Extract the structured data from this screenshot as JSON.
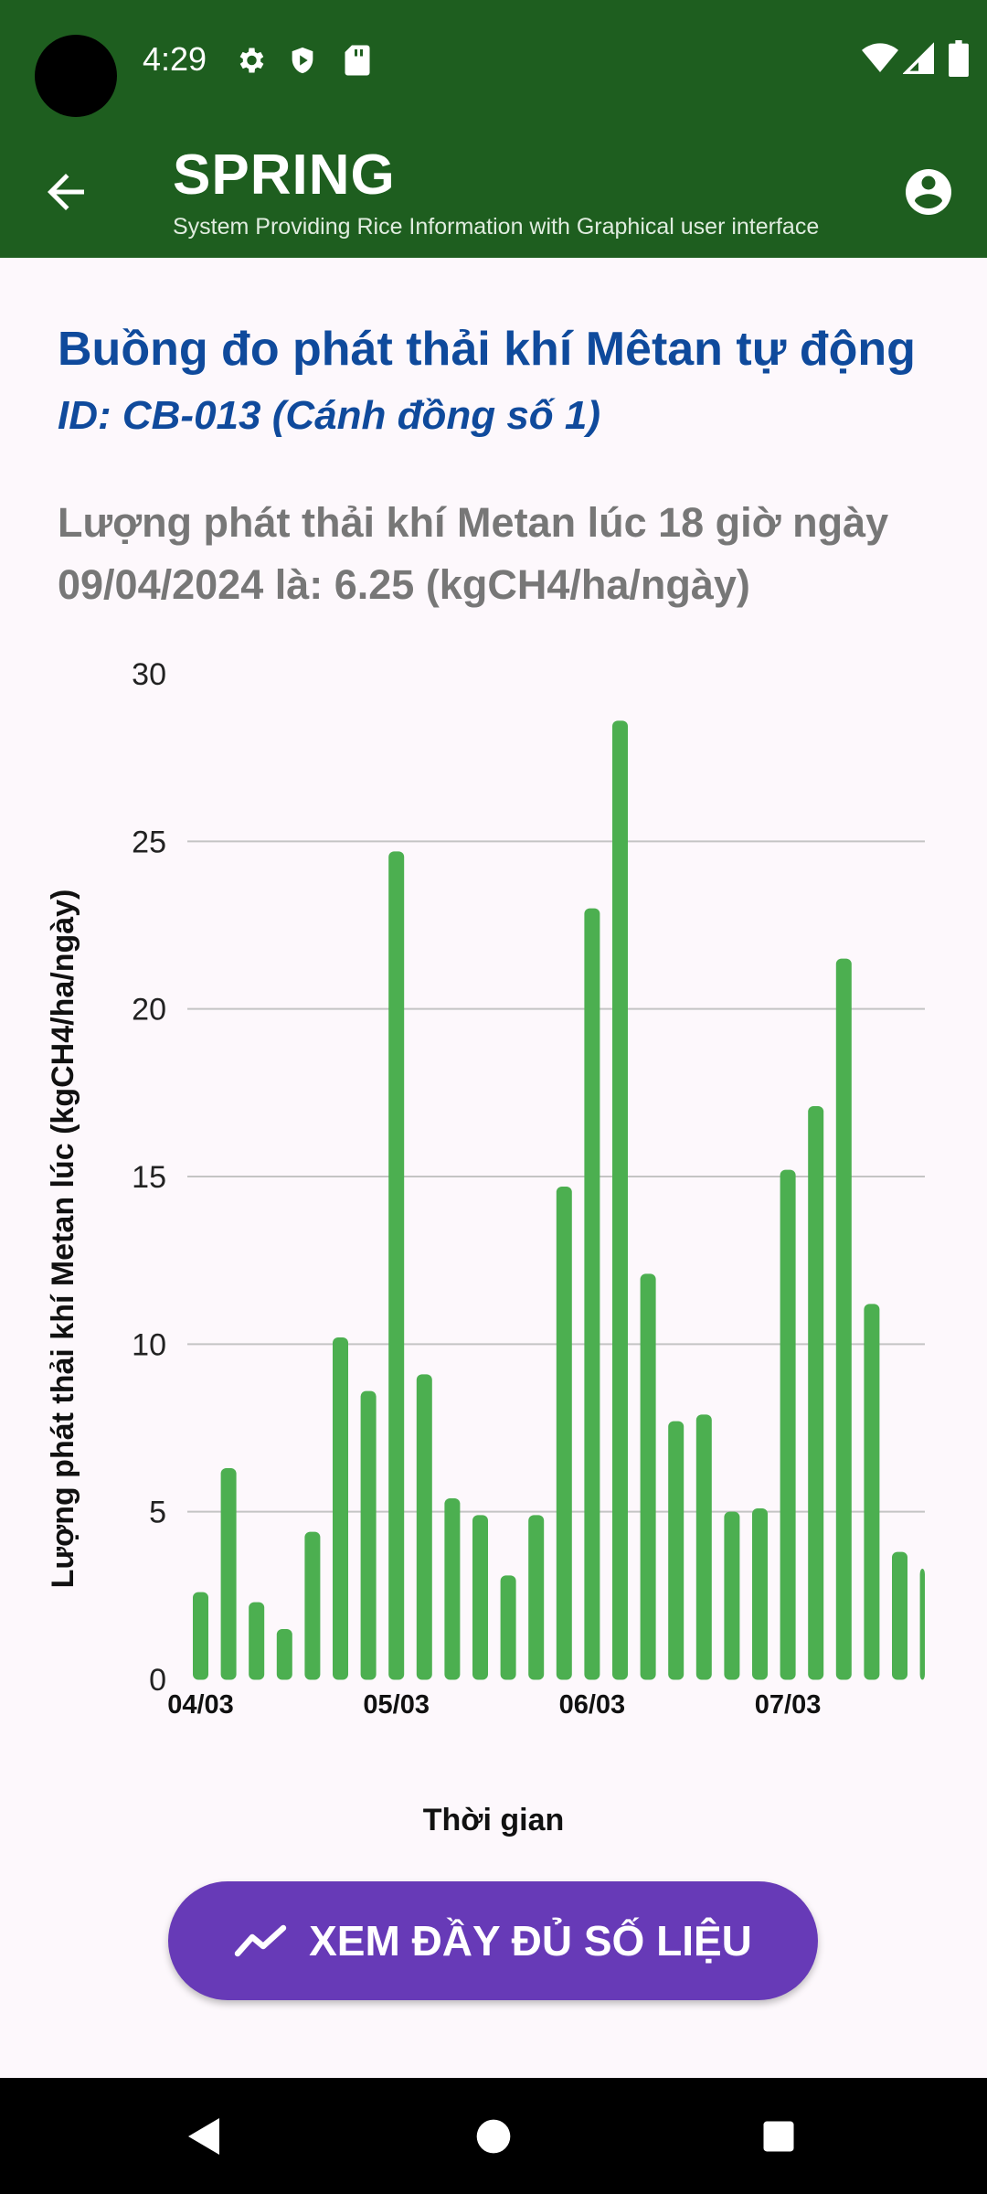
{
  "status_bar": {
    "time": "4:29",
    "icons": [
      "gear-icon",
      "shield-icon",
      "sd-card-icon",
      "wifi-icon",
      "signal-icon",
      "battery-icon"
    ]
  },
  "app_bar": {
    "title": "SPRING",
    "subtitle": "System Providing Rice Information with Graphical user interface",
    "back_icon": "arrow-back-icon",
    "account_icon": "account-circle-icon"
  },
  "page": {
    "heading": "Buồng đo phát thải khí Mêtan tự động",
    "device_id": "ID: CB-013 (Cánh đồng số 1)",
    "measurement": "Lượng phát thải khí Metan lúc 18 giờ ngày 09/04/2024 là: 6.25 (kgCH4/ha/ngày)"
  },
  "chart_data": {
    "type": "bar",
    "title": "",
    "xlabel": "Thời gian",
    "ylabel": "Lượng phát thải khí Metan lúc (kgCH4/ha/ngày)",
    "ylim": [
      0,
      30
    ],
    "yticks": [
      0,
      5,
      10,
      15,
      20,
      25,
      30
    ],
    "x_tick_labels": [
      {
        "label": "04/03",
        "index": 0
      },
      {
        "label": "05/03",
        "index": 7
      },
      {
        "label": "06/03",
        "index": 14
      },
      {
        "label": "07/03",
        "index": 21
      }
    ],
    "values": [
      2.6,
      6.3,
      2.3,
      1.5,
      4.4,
      10.2,
      8.6,
      24.7,
      9.1,
      5.4,
      4.9,
      3.1,
      4.9,
      14.7,
      23.0,
      28.6,
      12.1,
      7.7,
      7.9,
      5.0,
      5.1,
      15.2,
      17.1,
      21.5,
      11.2,
      3.8,
      3.3
    ],
    "bar_color": "#4caf50",
    "grid": true
  },
  "action_button": {
    "label": "XEM ĐẦY ĐỦ SỐ LIỆU",
    "icon": "trending-line-icon",
    "color": "#673ab7"
  },
  "nav_bar": {
    "icons": [
      "back-triangle-icon",
      "home-circle-icon",
      "recents-square-icon"
    ]
  }
}
